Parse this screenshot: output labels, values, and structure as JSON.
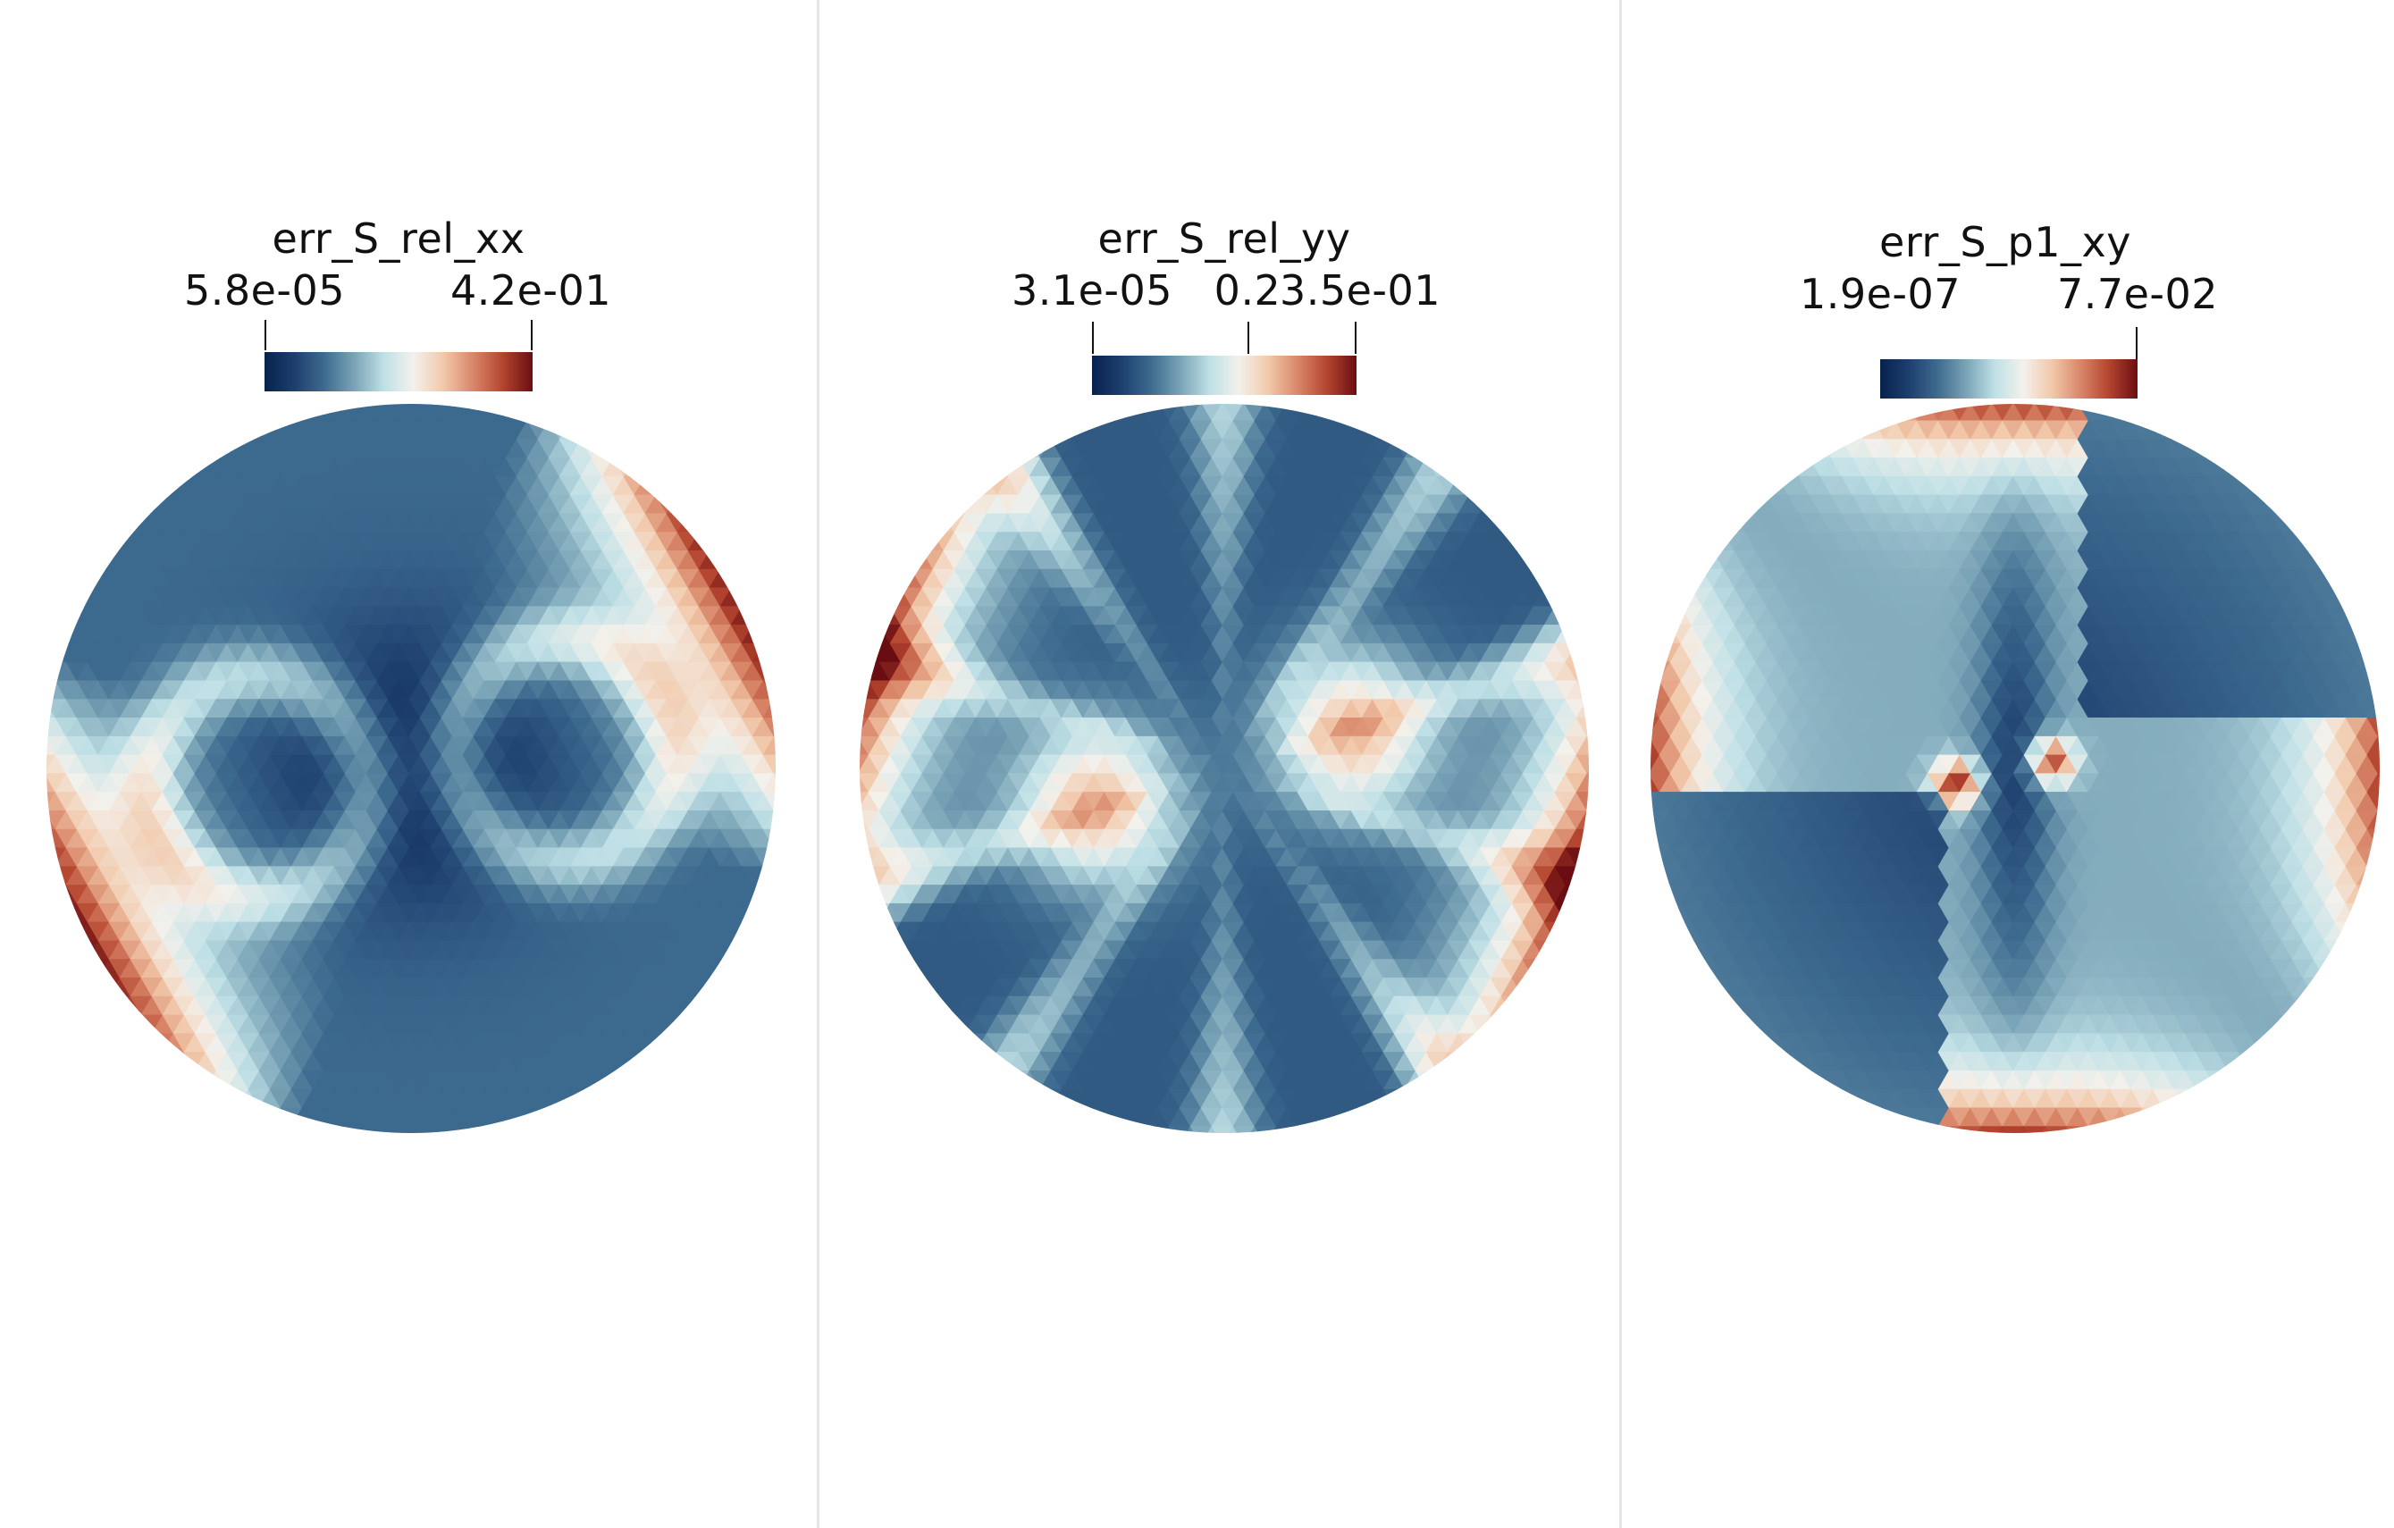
{
  "colormap": [
    "#08214e",
    "#1d3f6e",
    "#3d6a8f",
    "#79a3b6",
    "#bfe0e6",
    "#f3f1ec",
    "#f2c9ab",
    "#d9876a",
    "#b4452f",
    "#6a0d12"
  ],
  "panels": [
    {
      "field": "err_S_rel_xx",
      "range_min_label": "5.8e-05",
      "range_max_label": "4.2e-01",
      "extra_tick_label": "",
      "pattern": "xx"
    },
    {
      "field": "err_S_rel_yy",
      "range_min_label": "3.1e-05",
      "range_max_label": "3.5e-01",
      "extra_tick_label": "0.2",
      "pattern": "yy"
    },
    {
      "field": "err_S_p1_xy",
      "range_min_label": "1.9e-07",
      "range_max_label": "7.7e-02",
      "extra_tick_label": "",
      "pattern": "xy"
    }
  ],
  "chart_data": [
    {
      "type": "heatmap",
      "title": "err_S_rel_xx",
      "colorbar_min": 5.8e-05,
      "colorbar_max": 0.42
    },
    {
      "type": "heatmap",
      "title": "err_S_rel_yy",
      "colorbar_min": 3.1e-05,
      "colorbar_max": 0.35,
      "colorbar_extra_tick": 0.2
    },
    {
      "type": "heatmap",
      "title": "err_S_p1_xy",
      "colorbar_min": 1.9e-07,
      "colorbar_max": 0.077
    }
  ]
}
